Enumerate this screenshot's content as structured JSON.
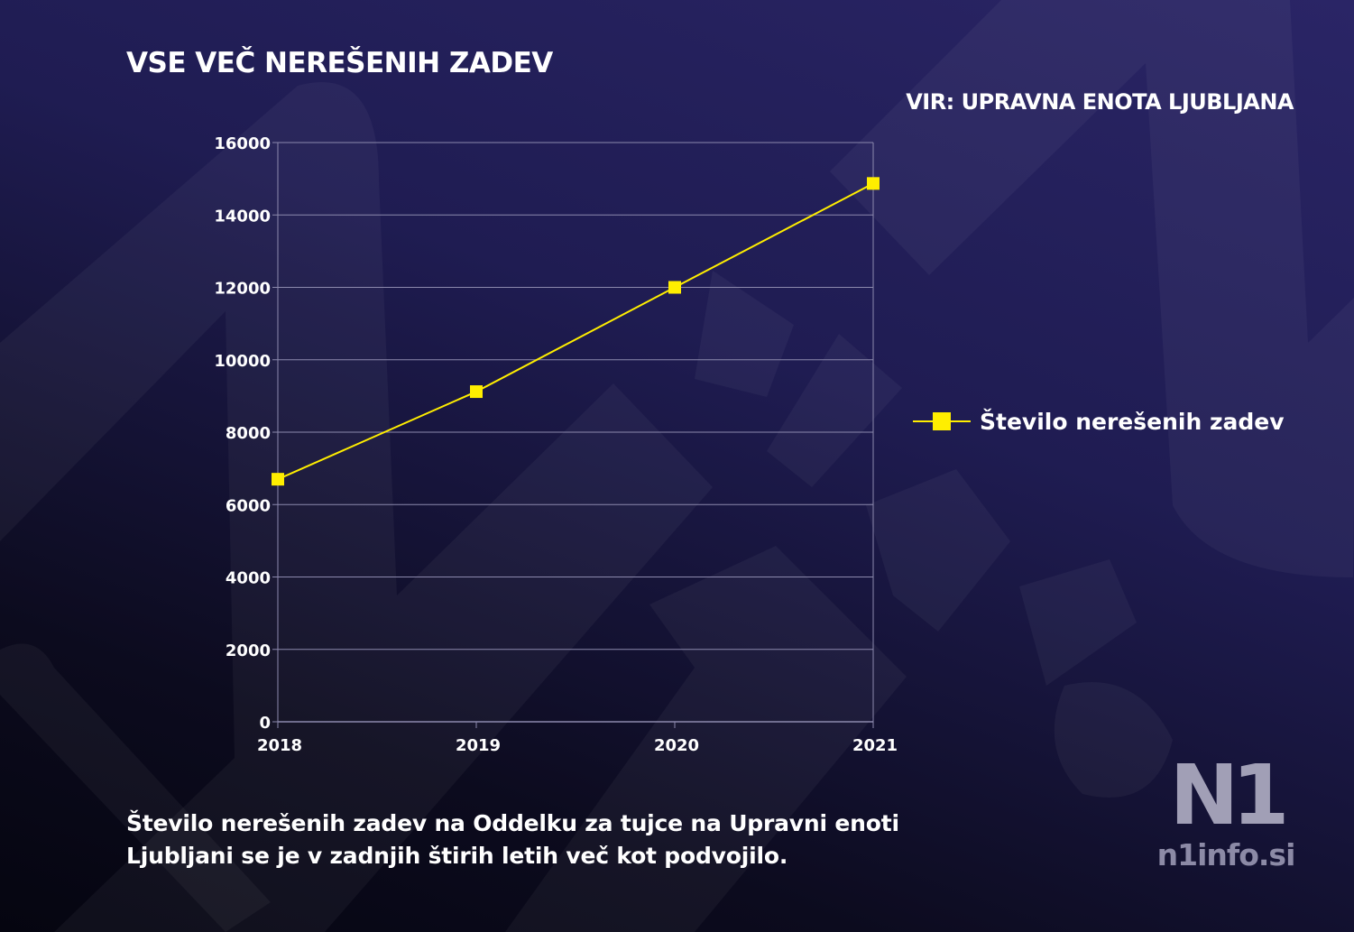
{
  "header": {
    "title": "VSE VEČ NEREŠENIH ZADEV",
    "source": "VIR: UPRAVNA ENOTA LJUBLJANA"
  },
  "caption": {
    "line1": "Število nerešenih zadev na Oddelku za tujce na Upravni enoti",
    "line2": "Ljubljani se je v zadnjih štirih letih več kot podvojilo."
  },
  "logo": {
    "mark": "N1",
    "domain": "n1info.si"
  },
  "colors": {
    "series": "#ffee00",
    "grid": "#8c89ad",
    "text": "#ffffff"
  },
  "chart_data": {
    "type": "line",
    "categories": [
      "2018",
      "2019",
      "2020",
      "2021"
    ],
    "series": [
      {
        "name": "Število nerešenih zadev",
        "values": [
          6700,
          9120,
          12000,
          14870
        ]
      }
    ],
    "ylim": [
      0,
      16000
    ],
    "yticks": [
      0,
      2000,
      4000,
      6000,
      8000,
      10000,
      12000,
      14000,
      16000
    ],
    "grid": true,
    "legend": "right",
    "marker": "square"
  }
}
